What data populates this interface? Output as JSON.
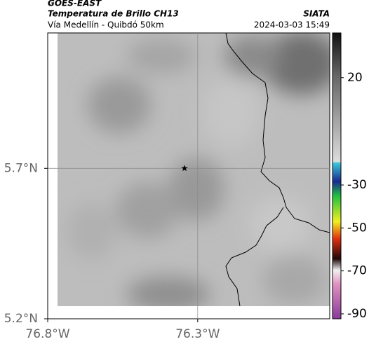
{
  "header": {
    "satellite": "GOES-EAST",
    "title": "Temperatura de Brillo CH13",
    "subtitle": "Vía Medellín - Quibdó 50km",
    "source": "SIATA",
    "datetime": "2024-03-03 15:49"
  },
  "map": {
    "xlim": [
      -76.8,
      -75.86
    ],
    "ylim": [
      5.2,
      6.15
    ],
    "xticks": [
      {
        "value": -76.8,
        "label": "76.8°W"
      },
      {
        "value": -76.3,
        "label": "76.3°W"
      }
    ],
    "yticks": [
      {
        "value": 5.2,
        "label": "5.2°N"
      },
      {
        "value": 5.7,
        "label": "5.7°N"
      }
    ],
    "grid": true,
    "marker": {
      "lon": -76.344,
      "lat": 5.7
    }
  },
  "colorbar": {
    "lim": [
      -92.3,
      40.8
    ],
    "ticks": [
      20,
      -30,
      -50,
      -70,
      -90
    ]
  }
}
